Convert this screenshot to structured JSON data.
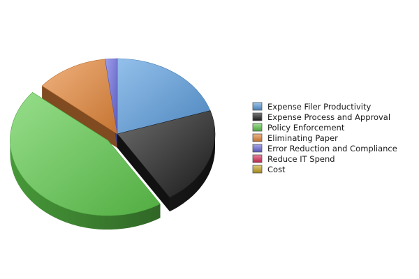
{
  "chart_data": {
    "type": "pie",
    "style": "3d-exploded",
    "title": "",
    "legend_position": "right",
    "series": [
      {
        "label": "Expense Filer Productivity",
        "value": 20,
        "color": "#5a9ee0"
      },
      {
        "label": "Expense Process and Approval",
        "value": 21,
        "color": "#1f1f1f"
      },
      {
        "label": "Policy Enforcement",
        "value": 45,
        "color": "#5fcc4c"
      },
      {
        "label": "Eliminating Paper",
        "value": 12,
        "color": "#e8893a"
      },
      {
        "label": "Error Reduction and Compliance",
        "value": 2,
        "color": "#6a6ae0"
      },
      {
        "label": "Reduce IT Spend",
        "value": 0,
        "color": "#e0305a"
      },
      {
        "label": "Cost",
        "value": 0,
        "color": "#c8a820"
      }
    ]
  }
}
